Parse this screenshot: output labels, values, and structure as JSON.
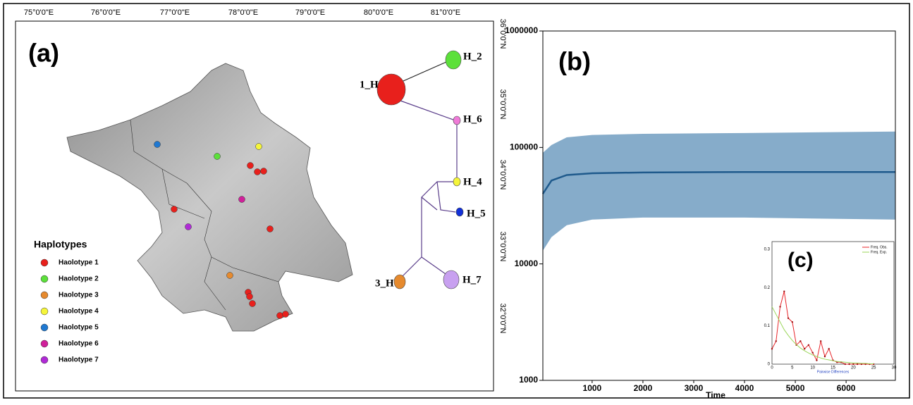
{
  "map": {
    "label": "(a)",
    "lon_ticks": [
      "75°0'0\"E",
      "76°0'0\"E",
      "77°0'0\"E",
      "78°0'0\"E",
      "79°0'0\"E",
      "80°0'0\"E",
      "81°0'0\"E"
    ],
    "lat_ticks": [
      "36°0'0\"N",
      "35°0'0\"N",
      "34°0'0\"N",
      "33°0'0\"N",
      "32°0'0\"N"
    ],
    "legend_title": "Haplotypes",
    "legend": [
      {
        "name": "Haolotype 1",
        "color": "#e8201c"
      },
      {
        "name": "Haolotype 2",
        "color": "#5ce03a"
      },
      {
        "name": "Haolotype 3",
        "color": "#e68a2e"
      },
      {
        "name": "Haolotype 4",
        "color": "#f5f53a"
      },
      {
        "name": "Haolotype 5",
        "color": "#1f78d1"
      },
      {
        "name": "Haolotype 6",
        "color": "#d0209a"
      },
      {
        "name": "Haolotype 7",
        "color": "#b02ad6"
      }
    ]
  },
  "network": {
    "nodes": [
      {
        "label": "1_H"
      },
      {
        "label": "H_2"
      },
      {
        "label": "H_6"
      },
      {
        "label": "H_4"
      },
      {
        "label": "H_5"
      },
      {
        "label": "3_H"
      },
      {
        "label": "H_7"
      }
    ]
  },
  "chart_data": [
    {
      "type": "skyline",
      "label": "(b)",
      "x_label": "Time",
      "log_y": true,
      "x": [
        30,
        200,
        500,
        1000,
        2000,
        4000,
        6970
      ],
      "series": [
        {
          "color": "#1f5a8c",
          "values": [
            40000,
            52000,
            58000,
            60000,
            61000,
            61500,
            61500
          ]
        }
      ],
      "band": {
        "color": "#86acca",
        "upper": [
          90000,
          105000,
          122000,
          128000,
          131000,
          133000,
          137000
        ],
        "lower": [
          13000,
          17000,
          21500,
          24000,
          25000,
          25000,
          24000
        ]
      },
      "xlim": [
        30,
        6970
      ],
      "xticks": [
        1000,
        2000,
        3000,
        4000,
        5000,
        6000
      ],
      "ylim": [
        1000,
        1000000
      ],
      "yticks": [
        1000,
        10000,
        100000,
        1000000
      ]
    },
    {
      "type": "line",
      "label": "(c)",
      "x_label": "Pairwise Differences",
      "x": [
        0,
        1,
        2,
        3,
        4,
        5,
        6,
        7,
        8,
        9,
        10,
        11,
        12,
        13,
        14,
        15,
        16,
        17,
        18,
        19,
        20,
        21,
        22,
        23,
        24,
        25
      ],
      "series": [
        {
          "name": "Freq. Obs.",
          "color": "#e8262b",
          "values": [
            0.04,
            0.06,
            0.15,
            0.19,
            0.12,
            0.11,
            0.05,
            0.06,
            0.04,
            0.05,
            0.03,
            0.01,
            0.06,
            0.02,
            0.04,
            0.01,
            0.005,
            0.005,
            0,
            0,
            0,
            0,
            0,
            0,
            0,
            0
          ]
        },
        {
          "name": "Freq. Exp.",
          "color": "#9bd65a",
          "values": [
            0.15,
            0.13,
            0.11,
            0.09,
            0.075,
            0.062,
            0.051,
            0.042,
            0.035,
            0.029,
            0.024,
            0.02,
            0.016,
            0.013,
            0.011,
            0.009,
            0.007,
            0.006,
            0.005,
            0.004,
            0.003,
            0.003,
            0.002,
            0.002,
            0.001,
            0.001
          ]
        }
      ],
      "xlim": [
        0,
        30
      ],
      "xticks": [
        0,
        5,
        10,
        15,
        20,
        25,
        30
      ],
      "ylim": [
        0,
        0.32
      ],
      "yticks": [
        0,
        0.1,
        0.2,
        0.3
      ]
    }
  ]
}
